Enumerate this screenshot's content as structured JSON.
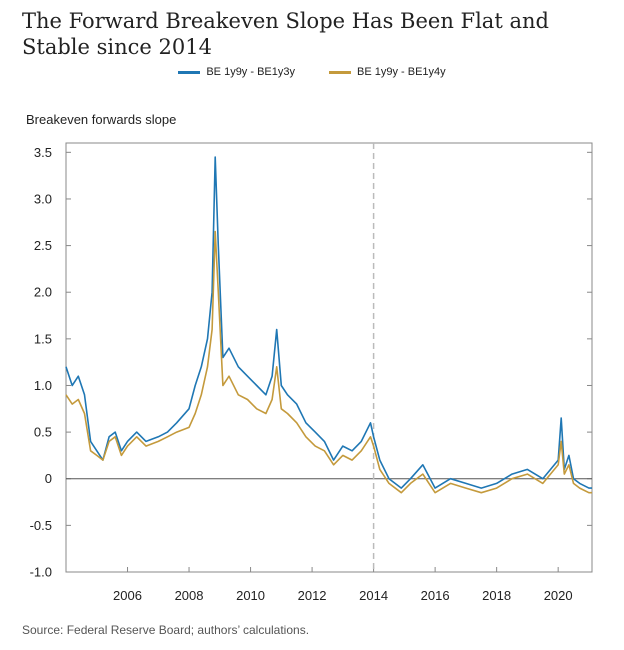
{
  "title": "The Forward Breakeven Slope Has Been Flat and Stable since 2014",
  "source": "Source: Federal Reserve Board; authors’ calculations.",
  "colors": {
    "series1": "#1f77b4",
    "series2": "#c49a3c",
    "zero_line": "#555555",
    "marker_line": "#bbbbbb"
  },
  "chart_data": {
    "type": "line",
    "ylabel": "Breakeven forwards slope",
    "xlabel": "",
    "xlim": [
      2004.0,
      2021.1
    ],
    "ylim": [
      -1.0,
      3.6
    ],
    "x_ticks": [
      2006,
      2008,
      2010,
      2012,
      2014,
      2016,
      2018,
      2020
    ],
    "x_tick_labels": [
      "2006",
      "2008",
      "2010",
      "2012",
      "2014",
      "2016",
      "2018",
      "2020"
    ],
    "y_ticks": [
      -1.0,
      -0.5,
      0,
      0.5,
      1.0,
      1.5,
      2.0,
      2.5,
      3.0,
      3.5
    ],
    "y_tick_labels": [
      "-1.0",
      "-0.5",
      "0",
      "0.5",
      "1.0",
      "1.5",
      "2.0",
      "2.5",
      "3.0",
      "3.5"
    ],
    "grid": false,
    "legend_position": "top",
    "reference_lines": {
      "horizontal_y": 0,
      "vertical_x": 2014.0
    },
    "series": [
      {
        "name": "BE 1y9y - BE1y3y",
        "x": [
          2004.0,
          2004.2,
          2004.4,
          2004.6,
          2004.8,
          2005.0,
          2005.2,
          2005.4,
          2005.6,
          2005.8,
          2006.0,
          2006.3,
          2006.6,
          2007.0,
          2007.3,
          2007.6,
          2008.0,
          2008.2,
          2008.4,
          2008.6,
          2008.75,
          2008.85,
          2008.95,
          2009.1,
          2009.3,
          2009.6,
          2009.9,
          2010.2,
          2010.5,
          2010.7,
          2010.85,
          2011.0,
          2011.2,
          2011.5,
          2011.8,
          2012.1,
          2012.4,
          2012.7,
          2013.0,
          2013.3,
          2013.6,
          2013.9,
          2014.0,
          2014.2,
          2014.5,
          2014.9,
          2015.2,
          2015.6,
          2016.0,
          2016.5,
          2017.0,
          2017.5,
          2018.0,
          2018.5,
          2019.0,
          2019.5,
          2020.0,
          2020.1,
          2020.2,
          2020.35,
          2020.5,
          2020.7,
          2021.0,
          2021.1
        ],
        "y": [
          1.2,
          1.0,
          1.1,
          0.9,
          0.4,
          0.3,
          0.2,
          0.45,
          0.5,
          0.3,
          0.4,
          0.5,
          0.4,
          0.45,
          0.5,
          0.6,
          0.75,
          1.0,
          1.2,
          1.5,
          2.0,
          3.45,
          2.5,
          1.3,
          1.4,
          1.2,
          1.1,
          1.0,
          0.9,
          1.1,
          1.6,
          1.0,
          0.9,
          0.8,
          0.6,
          0.5,
          0.4,
          0.2,
          0.35,
          0.3,
          0.4,
          0.6,
          0.45,
          0.2,
          0.0,
          -0.1,
          0.0,
          0.15,
          -0.1,
          0.0,
          -0.05,
          -0.1,
          -0.05,
          0.05,
          0.1,
          0.0,
          0.2,
          0.65,
          0.1,
          0.25,
          0.0,
          -0.05,
          -0.1,
          -0.1
        ]
      },
      {
        "name": "BE 1y9y - BE1y4y",
        "x": [
          2004.0,
          2004.2,
          2004.4,
          2004.6,
          2004.8,
          2005.0,
          2005.2,
          2005.4,
          2005.6,
          2005.8,
          2006.0,
          2006.3,
          2006.6,
          2007.0,
          2007.3,
          2007.6,
          2008.0,
          2008.2,
          2008.4,
          2008.6,
          2008.75,
          2008.85,
          2008.95,
          2009.1,
          2009.3,
          2009.6,
          2009.9,
          2010.2,
          2010.5,
          2010.7,
          2010.85,
          2011.0,
          2011.2,
          2011.5,
          2011.8,
          2012.1,
          2012.4,
          2012.7,
          2013.0,
          2013.3,
          2013.6,
          2013.9,
          2014.0,
          2014.2,
          2014.5,
          2014.9,
          2015.2,
          2015.6,
          2016.0,
          2016.5,
          2017.0,
          2017.5,
          2018.0,
          2018.5,
          2019.0,
          2019.5,
          2020.0,
          2020.1,
          2020.2,
          2020.35,
          2020.5,
          2020.7,
          2021.0,
          2021.1
        ],
        "y": [
          0.9,
          0.8,
          0.85,
          0.7,
          0.3,
          0.25,
          0.2,
          0.4,
          0.45,
          0.25,
          0.35,
          0.45,
          0.35,
          0.4,
          0.45,
          0.5,
          0.55,
          0.7,
          0.9,
          1.2,
          1.6,
          2.65,
          2.0,
          1.0,
          1.1,
          0.9,
          0.85,
          0.75,
          0.7,
          0.85,
          1.2,
          0.75,
          0.7,
          0.6,
          0.45,
          0.35,
          0.3,
          0.15,
          0.25,
          0.2,
          0.3,
          0.45,
          0.35,
          0.1,
          -0.05,
          -0.15,
          -0.05,
          0.05,
          -0.15,
          -0.05,
          -0.1,
          -0.15,
          -0.1,
          0.0,
          0.05,
          -0.05,
          0.15,
          0.4,
          0.05,
          0.15,
          -0.05,
          -0.1,
          -0.15,
          -0.15
        ]
      }
    ]
  }
}
